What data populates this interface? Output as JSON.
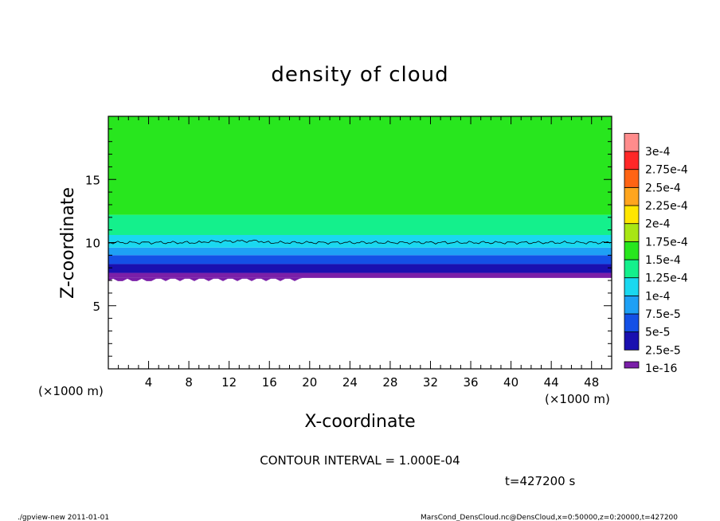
{
  "chart_data": {
    "type": "heatmap",
    "title": "density of cloud",
    "xlabel": "X-coordinate",
    "ylabel": "Z-coordinate",
    "x_unit_label": "(×1000 m)",
    "y_unit_label": "(×1000 m)",
    "xlim": [
      0,
      50
    ],
    "ylim": [
      0,
      20
    ],
    "x_ticks": [
      4,
      8,
      12,
      16,
      20,
      24,
      28,
      32,
      36,
      40,
      44,
      48
    ],
    "y_ticks": [
      5,
      10,
      15
    ],
    "colorbar": {
      "levels": [
        "1e-16",
        "2.5e-5",
        "5e-5",
        "7.5e-5",
        "1e-4",
        "1.25e-4",
        "1.5e-4",
        "1.75e-4",
        "2e-4",
        "2.25e-4",
        "2.5e-4",
        "2.75e-4",
        "3e-4"
      ],
      "colors": [
        "#7a1fa8",
        "#1a10b0",
        "#1450e6",
        "#1ea0f5",
        "#1ad8f0",
        "#14f08c",
        "#28e61e",
        "#a8e614",
        "#ffe600",
        "#ffa51e",
        "#ff6414",
        "#ff2828",
        "#ff8c8c"
      ]
    },
    "field": {
      "description_bands_in_km": [
        {
          "z_from": 7.2,
          "z_to": 7.6,
          "level_index": 0
        },
        {
          "z_from": 7.6,
          "z_to": 8.3,
          "level_index": 1
        },
        {
          "z_from": 8.3,
          "z_to": 9.0,
          "level_index": 2
        },
        {
          "z_from": 9.0,
          "z_to": 9.6,
          "level_index": 3
        },
        {
          "z_from": 9.6,
          "z_to": 10.6,
          "level_index": 4
        },
        {
          "z_from": 10.6,
          "z_to": 12.2,
          "level_index": 5
        },
        {
          "z_from": 12.2,
          "z_to": 20.0,
          "level_index": 6
        }
      ],
      "cloud_base_km": 7.2,
      "contour_km": 10.0
    },
    "contour_interval": "CONTOUR INTERVAL = 1.000E-04",
    "time_label": "t=427200 s"
  },
  "footer": {
    "left": "./gpview-new  2011-01-01",
    "right": "MarsCond_DensCloud.nc@DensCloud,x=0:50000,z=0:20000,t=427200"
  }
}
